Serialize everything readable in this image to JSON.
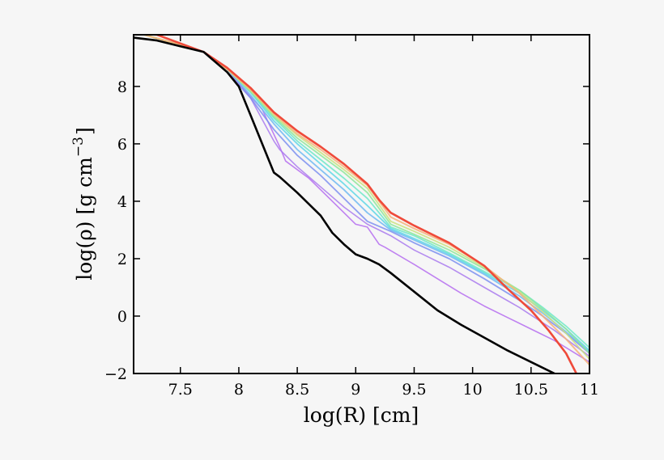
{
  "chart_data": {
    "type": "line",
    "title": "",
    "xlabel": "log(R) [cm]",
    "ylabel_prefix": "log(ρ) [g cm",
    "ylabel_exponent": "−3",
    "ylabel_suffix": "]",
    "xlim": [
      7.1,
      11.0
    ],
    "ylim": [
      -2,
      9.8
    ],
    "x_ticks": [
      7.5,
      8.0,
      8.5,
      9.0,
      9.5,
      10.0,
      10.5,
      11.0
    ],
    "x_tick_labels": [
      "7.5",
      "8",
      "8.5",
      "9",
      "9.5",
      "10",
      "10.5",
      "11"
    ],
    "y_ticks": [
      -2,
      0,
      2,
      4,
      6,
      8
    ],
    "y_tick_labels": [
      "−2",
      "0",
      "2",
      "4",
      "6",
      "8"
    ],
    "grid": false,
    "legend": "none",
    "series": [
      {
        "name": "black",
        "color": "#000000",
        "width": 2.6,
        "x": [
          7.1,
          7.3,
          7.5,
          7.7,
          7.9,
          8.0,
          8.1,
          8.2,
          8.3,
          8.35,
          8.5,
          8.7,
          8.8,
          8.9,
          9.0,
          9.1,
          9.2,
          9.3,
          9.5,
          9.7,
          9.9,
          10.1,
          10.3,
          10.5,
          10.7,
          10.75
        ],
        "y": [
          9.7,
          9.6,
          9.4,
          9.2,
          8.5,
          8.0,
          7.0,
          6.0,
          5.0,
          4.85,
          4.3,
          3.5,
          2.9,
          2.5,
          2.15,
          2.0,
          1.8,
          1.5,
          0.85,
          0.2,
          -0.3,
          -0.75,
          -1.2,
          -1.6,
          -2.0,
          -2.1
        ]
      },
      {
        "name": "purple",
        "color": "#b56cf0",
        "width": 1.6,
        "x": [
          7.1,
          7.5,
          7.7,
          7.9,
          8.0,
          8.2,
          8.35,
          8.4,
          8.6,
          8.8,
          9.0,
          9.1,
          9.2,
          9.25,
          9.5,
          9.7,
          9.9,
          10.1,
          10.3,
          10.5,
          10.7,
          11.0
        ],
        "y": [
          9.9,
          9.45,
          9.2,
          8.5,
          8.1,
          7.2,
          5.9,
          5.4,
          4.8,
          4.0,
          3.2,
          3.1,
          2.5,
          2.4,
          1.8,
          1.3,
          0.8,
          0.35,
          -0.05,
          -0.45,
          -0.85,
          -1.6
        ]
      },
      {
        "name": "violet",
        "color": "#a97aef",
        "width": 1.6,
        "x": [
          7.1,
          7.5,
          7.7,
          7.9,
          8.1,
          8.3,
          8.35,
          8.5,
          8.7,
          8.9,
          9.1,
          9.3,
          9.5,
          9.8,
          10.1,
          10.4,
          10.7,
          11.0
        ],
        "y": [
          9.9,
          9.45,
          9.2,
          8.6,
          7.6,
          6.1,
          5.8,
          5.2,
          4.5,
          3.8,
          3.2,
          2.8,
          2.3,
          1.7,
          1.0,
          0.3,
          -0.5,
          -1.4
        ]
      },
      {
        "name": "blue",
        "color": "#7d8ff0",
        "width": 1.8,
        "x": [
          7.1,
          7.5,
          7.7,
          7.9,
          8.1,
          8.3,
          8.5,
          8.7,
          8.9,
          9.1,
          9.3,
          9.5,
          9.8,
          10.1,
          10.4,
          10.6,
          10.8,
          11.0
        ],
        "y": [
          9.9,
          9.45,
          9.2,
          8.5,
          7.6,
          6.5,
          5.6,
          4.9,
          4.1,
          3.3,
          2.95,
          2.55,
          2.0,
          1.3,
          0.55,
          0.0,
          -0.6,
          -1.3
        ]
      },
      {
        "name": "sky",
        "color": "#6fb8f2",
        "width": 1.8,
        "x": [
          7.1,
          7.5,
          7.7,
          7.9,
          8.1,
          8.3,
          8.5,
          8.7,
          8.9,
          9.1,
          9.3,
          9.5,
          9.8,
          10.1,
          10.4,
          10.6,
          10.8,
          11.0
        ],
        "y": [
          9.9,
          9.45,
          9.2,
          8.6,
          7.7,
          6.7,
          5.8,
          5.1,
          4.4,
          3.6,
          3.0,
          2.65,
          2.1,
          1.45,
          0.7,
          0.1,
          -0.55,
          -1.25
        ]
      },
      {
        "name": "cyan",
        "color": "#5ed7e6",
        "width": 1.8,
        "x": [
          7.1,
          7.5,
          7.7,
          7.9,
          8.1,
          8.3,
          8.5,
          8.7,
          8.9,
          9.1,
          9.3,
          9.5,
          9.8,
          10.1,
          10.4,
          10.6,
          10.8,
          11.0
        ],
        "y": [
          9.9,
          9.45,
          9.2,
          8.6,
          7.8,
          6.8,
          6.0,
          5.3,
          4.6,
          3.85,
          3.05,
          2.7,
          2.15,
          1.5,
          0.8,
          0.2,
          -0.45,
          -1.2
        ]
      },
      {
        "name": "aqua",
        "color": "#6ee8c8",
        "width": 1.8,
        "x": [
          7.1,
          7.5,
          7.7,
          7.9,
          8.1,
          8.3,
          8.5,
          8.7,
          8.9,
          9.1,
          9.3,
          9.5,
          9.8,
          10.1,
          10.4,
          10.6,
          10.8,
          11.0
        ],
        "y": [
          9.9,
          9.45,
          9.2,
          8.6,
          7.8,
          6.9,
          6.1,
          5.45,
          4.8,
          4.1,
          3.1,
          2.8,
          2.2,
          1.55,
          0.9,
          0.3,
          -0.35,
          -1.1
        ]
      },
      {
        "name": "green",
        "color": "#8ee69a",
        "width": 1.8,
        "x": [
          7.1,
          7.5,
          7.7,
          7.9,
          8.1,
          8.3,
          8.5,
          8.7,
          8.9,
          9.1,
          9.3,
          9.5,
          9.8,
          10.1,
          10.4,
          10.6,
          10.8,
          11.0
        ],
        "y": [
          9.9,
          9.45,
          9.2,
          8.6,
          7.85,
          6.95,
          6.2,
          5.6,
          5.0,
          4.3,
          3.2,
          2.85,
          2.3,
          1.65,
          0.9,
          0.25,
          -0.45,
          -1.3
        ]
      },
      {
        "name": "yellow",
        "color": "#c9e27c",
        "width": 1.8,
        "x": [
          7.1,
          7.5,
          7.7,
          7.9,
          8.1,
          8.3,
          8.5,
          8.7,
          8.9,
          9.1,
          9.3,
          9.5,
          9.8,
          10.1,
          10.4,
          10.6,
          10.8,
          11.0
        ],
        "y": [
          9.9,
          9.45,
          9.2,
          8.6,
          7.85,
          7.0,
          6.3,
          5.7,
          5.1,
          4.45,
          3.3,
          2.95,
          2.4,
          1.7,
          0.85,
          0.15,
          -0.6,
          -1.5
        ]
      },
      {
        "name": "orange",
        "color": "#f6b27a",
        "width": 2.0,
        "x": [
          7.1,
          7.5,
          7.7,
          7.9,
          8.1,
          8.3,
          8.5,
          8.7,
          8.9,
          9.1,
          9.3,
          9.5,
          9.8,
          10.1,
          10.4,
          10.6,
          10.8,
          11.0
        ],
        "y": [
          9.9,
          9.45,
          9.2,
          8.6,
          7.9,
          7.05,
          6.35,
          5.8,
          5.2,
          4.55,
          3.45,
          3.05,
          2.5,
          1.75,
          0.8,
          0.0,
          -0.8,
          -1.7
        ]
      },
      {
        "name": "red",
        "color": "#ef4a3a",
        "width": 2.6,
        "x": [
          7.1,
          7.3,
          7.5,
          7.7,
          7.9,
          8.1,
          8.3,
          8.5,
          8.7,
          8.9,
          9.1,
          9.2,
          9.3,
          9.5,
          9.8,
          10.1,
          10.3,
          10.5,
          10.65,
          10.8,
          10.9
        ],
        "y": [
          9.85,
          9.8,
          9.5,
          9.2,
          8.65,
          7.95,
          7.1,
          6.45,
          5.9,
          5.3,
          4.6,
          4.05,
          3.6,
          3.15,
          2.55,
          1.75,
          0.95,
          0.2,
          -0.5,
          -1.3,
          -2.1
        ]
      }
    ]
  }
}
